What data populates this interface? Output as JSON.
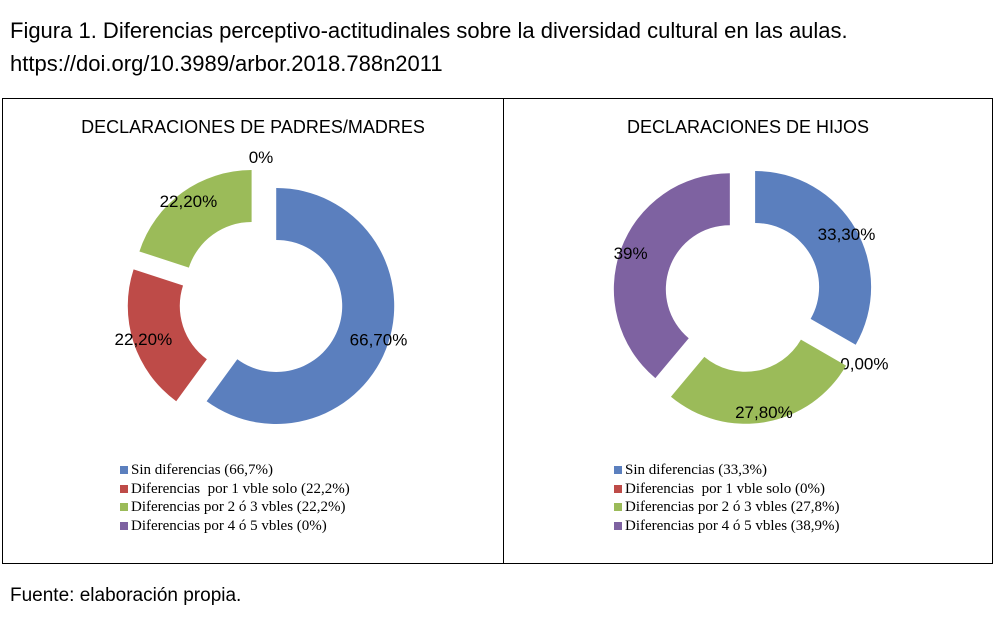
{
  "caption": {
    "line1": "Figura 1. Diferencias perceptivo-actitudinales sobre la diversidad cultural en las aulas.",
    "line2": "https://doi.org/10.3989/arbor.2018.788n2011"
  },
  "source": "Fuente: elaboración propia.",
  "colors": {
    "blue": "#5B7FBE",
    "red": "#BE4B48",
    "green": "#9BBB59",
    "purple": "#7E62A1"
  },
  "chart_data": [
    {
      "type": "pie",
      "variant": "exploded-donut",
      "title": "DECLARACIONES DE PADRES/MADRES",
      "categories": [
        "Sin diferencias",
        "Diferencias por 1 vble solo",
        "Diferencias por 2 ó 3 vbles",
        "Diferencias por 4 ó 5 vbles"
      ],
      "values": [
        66.7,
        22.2,
        22.2,
        0
      ],
      "data_labels": [
        "66,70%",
        "22,20%",
        "22,20%",
        "0%"
      ],
      "legend": [
        "Sin diferencias (66,7%)",
        "Diferencias  por 1 vble solo (22,2%)",
        "Diferencias por 2 ó 3 vbles (22,2%)",
        "Diferencias por 4 ó 5 vbles (0%)"
      ],
      "colors": [
        "#5B7FBE",
        "#BE4B48",
        "#9BBB59",
        "#7E62A1"
      ],
      "legend_position": "bottom"
    },
    {
      "type": "pie",
      "variant": "exploded-donut",
      "title": "DECLARACIONES DE HIJOS",
      "categories": [
        "Sin diferencias",
        "Diferencias por 1 vble solo",
        "Diferencias por 2 ó 3 vbles",
        "Diferencias por 4 ó 5 vbles"
      ],
      "values": [
        33.3,
        0,
        27.8,
        38.9
      ],
      "data_labels": [
        "33,30%",
        "0,00%",
        "27,80%",
        "39%"
      ],
      "legend": [
        "Sin diferencias (33,3%)",
        "Diferencias  por 1 vble solo (0%)",
        "Diferencias por 2 ó 3 vbles (27,8%)",
        "Diferencias por 4 ó 5 vbles (38,9%)"
      ],
      "colors": [
        "#5B7FBE",
        "#BE4B48",
        "#9BBB59",
        "#7E62A1"
      ],
      "legend_position": "bottom"
    }
  ]
}
